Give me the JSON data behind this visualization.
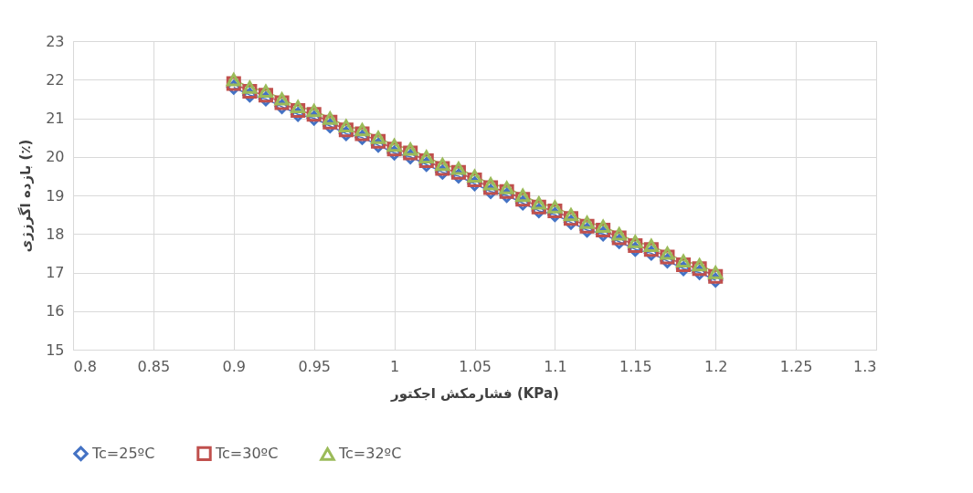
{
  "chart_data": {
    "type": "line",
    "xlabel": "فشارمکش اجکتور (KPa)",
    "ylabel": "بازده اگرزژی (٪)",
    "x": [
      0.9,
      0.91,
      0.92,
      0.93,
      0.94,
      0.95,
      0.96,
      0.97,
      0.98,
      0.99,
      1.0,
      1.01,
      1.02,
      1.03,
      1.04,
      1.05,
      1.06,
      1.07,
      1.08,
      1.09,
      1.1,
      1.11,
      1.12,
      1.13,
      1.14,
      1.15,
      1.16,
      1.17,
      1.18,
      1.19,
      1.2
    ],
    "series": [
      {
        "name": "Tc=25ºC",
        "color": "#4472c4",
        "marker": "diamond",
        "values": [
          21.8,
          21.6,
          21.5,
          21.3,
          21.1,
          21.0,
          20.8,
          20.6,
          20.5,
          20.3,
          20.1,
          20.0,
          19.8,
          19.6,
          19.5,
          19.3,
          19.1,
          19.0,
          18.8,
          18.6,
          18.5,
          18.3,
          18.1,
          18.0,
          17.8,
          17.6,
          17.5,
          17.3,
          17.1,
          17.0,
          16.8
        ]
      },
      {
        "name": "Tc=30ºC",
        "color": "#c0504d",
        "marker": "square",
        "values": [
          21.9,
          21.7,
          21.6,
          21.4,
          21.2,
          21.1,
          20.9,
          20.7,
          20.6,
          20.4,
          20.2,
          20.1,
          19.9,
          19.7,
          19.6,
          19.4,
          19.2,
          19.1,
          18.9,
          18.7,
          18.6,
          18.4,
          18.2,
          18.1,
          17.9,
          17.7,
          17.6,
          17.4,
          17.2,
          17.1,
          16.9
        ]
      },
      {
        "name": "Tc=32ºC",
        "color": "#9bbb59",
        "marker": "triangle",
        "values": [
          22.0,
          21.8,
          21.7,
          21.5,
          21.3,
          21.2,
          21.0,
          20.8,
          20.7,
          20.5,
          20.3,
          20.2,
          20.0,
          19.8,
          19.7,
          19.5,
          19.3,
          19.2,
          19.0,
          18.8,
          18.7,
          18.5,
          18.3,
          18.2,
          18.0,
          17.8,
          17.7,
          17.5,
          17.3,
          17.2,
          17.0
        ]
      }
    ],
    "xlim": [
      0.8,
      1.3
    ],
    "xticks": [
      0.8,
      0.85,
      0.9,
      0.95,
      1,
      1.05,
      1.1,
      1.15,
      1.2,
      1.25,
      1.3
    ],
    "ylim": [
      15,
      23
    ],
    "yticks": [
      15,
      16,
      17,
      18,
      19,
      20,
      21,
      22,
      23
    ],
    "grid": true,
    "legend": "bottom",
    "line_style": "solid"
  }
}
